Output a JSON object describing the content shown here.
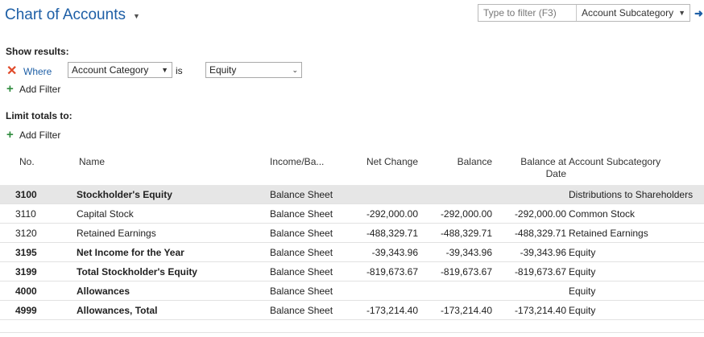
{
  "page": {
    "title": "Chart of Accounts"
  },
  "search": {
    "placeholder": "Type to filter (F3)",
    "field": "Account Subcategory"
  },
  "filters": {
    "show_results_label": "Show results:",
    "where_label": "Where",
    "field": "Account Category",
    "operator": "is",
    "value": "Equity",
    "add_filter_label": "Add Filter",
    "limit_totals_label": "Limit totals to:",
    "add_filter2_label": "Add Filter"
  },
  "table": {
    "columns": {
      "no": "No.",
      "name": "Name",
      "income_balance": "Income/Ba...",
      "net_change": "Net Change",
      "balance": "Balance",
      "balance_at_date_1": "Balance at",
      "balance_at_date_2": "Date",
      "subcategory": "Account Subcategory"
    },
    "rows": [
      {
        "no": "3100",
        "name": "Stockholder's Equity",
        "income_balance": "Balance Sheet",
        "net_change": "",
        "balance": "",
        "balance_at_date": "",
        "subcategory": "Distributions to Shareholders",
        "bold": true,
        "selected": true
      },
      {
        "no": "3110",
        "name": "Capital Stock",
        "income_balance": "Balance Sheet",
        "net_change": "-292,000.00",
        "balance": "-292,000.00",
        "balance_at_date": "-292,000.00",
        "subcategory": "Common Stock",
        "bold": false
      },
      {
        "no": "3120",
        "name": "Retained Earnings",
        "income_balance": "Balance Sheet",
        "net_change": "-488,329.71",
        "balance": "-488,329.71",
        "balance_at_date": "-488,329.71",
        "subcategory": "Retained Earnings",
        "bold": false
      },
      {
        "no": "3195",
        "name": "Net Income for the Year",
        "income_balance": "Balance Sheet",
        "net_change": "-39,343.96",
        "balance": "-39,343.96",
        "balance_at_date": "-39,343.96",
        "subcategory": "Equity",
        "bold": true
      },
      {
        "no": "3199",
        "name": "Total Stockholder's Equity",
        "income_balance": "Balance Sheet",
        "net_change": "-819,673.67",
        "balance": "-819,673.67",
        "balance_at_date": "-819,673.67",
        "subcategory": "Equity",
        "bold": true
      },
      {
        "no": "4000",
        "name": "Allowances",
        "income_balance": "Balance Sheet",
        "net_change": "",
        "balance": "",
        "balance_at_date": "",
        "subcategory": "Equity",
        "bold": true
      },
      {
        "no": "4999",
        "name": "Allowances, Total",
        "income_balance": "Balance Sheet",
        "net_change": "-173,214.40",
        "balance": "-173,214.40",
        "balance_at_date": "-173,214.40",
        "subcategory": "Equity",
        "bold": true
      }
    ]
  }
}
